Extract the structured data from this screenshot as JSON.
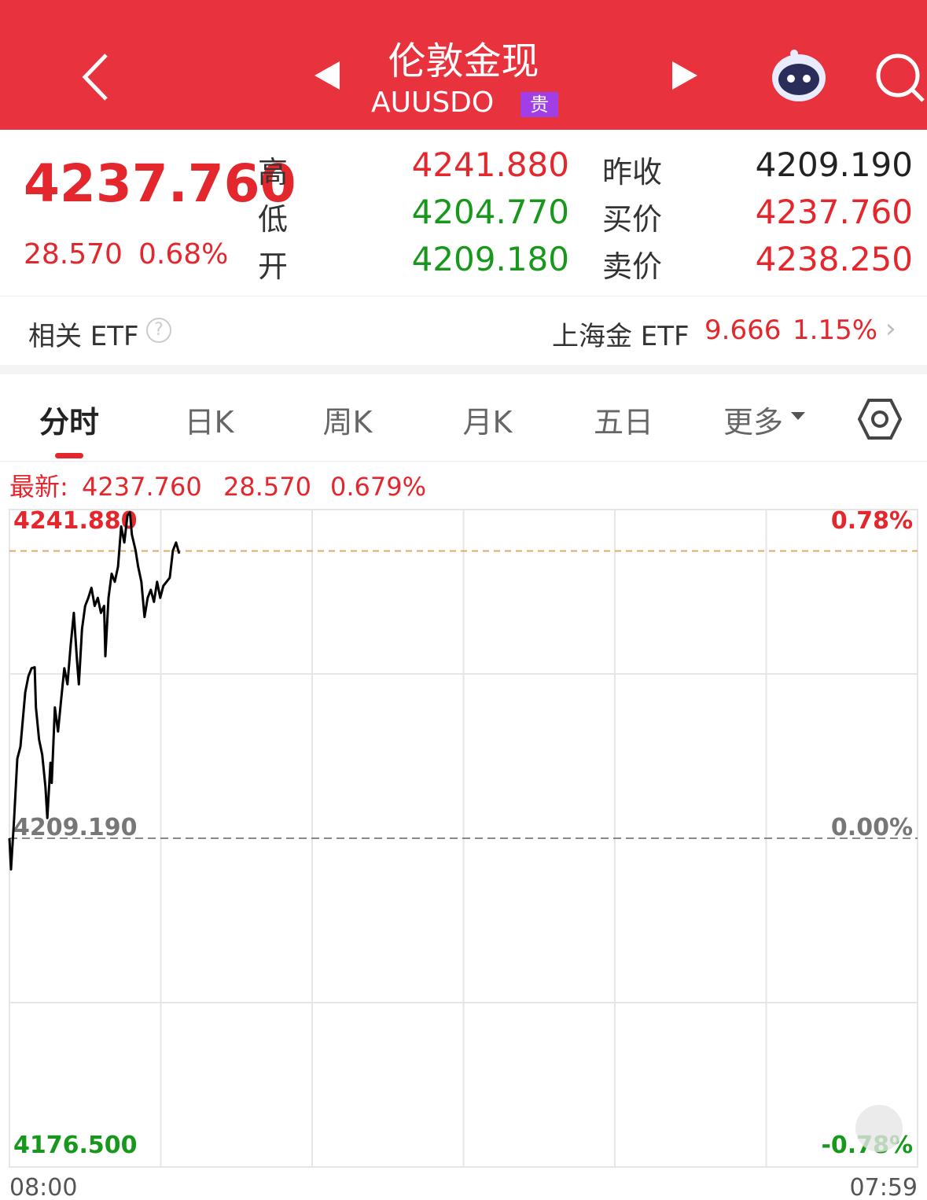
{
  "header": {
    "title": "伦敦金现",
    "code": "AUUSDO",
    "badge": "贵"
  },
  "quote": {
    "price": "4237.760",
    "change": "28.570",
    "percent": "0.68%",
    "high_label": "高",
    "high": "4241.880",
    "low_label": "低",
    "low": "4204.770",
    "open_label": "开",
    "open": "4209.180",
    "prev_close_label": "昨收",
    "prev_close": "4209.190",
    "bid_label": "买价",
    "bid": "4237.760",
    "ask_label": "卖价",
    "ask": "4238.250"
  },
  "etf": {
    "label": "相关 ETF",
    "name": "上海金 ETF",
    "price": "9.666",
    "percent": "1.15%"
  },
  "tabs": [
    "分时",
    "日K",
    "周K",
    "月K",
    "五日",
    "更多"
  ],
  "chart_data": {
    "type": "line",
    "latest_label": "最新:",
    "latest": {
      "value": 4237.76,
      "label": "4237.760"
    },
    "change": "28.570",
    "percent": "0.679%",
    "xlim": [
      0,
      1439
    ],
    "xticks": [
      {
        "value": 0,
        "label": "08:00"
      },
      {
        "value": 1439,
        "label": "07:59"
      }
    ],
    "ylim": [
      4176.5,
      4241.88
    ],
    "yticks": [
      {
        "value": 4176.5,
        "label": "4176.500"
      },
      {
        "value": 4209.19,
        "label": "4209.190"
      },
      {
        "value": 4241.88,
        "label": "4241.880"
      }
    ],
    "y2lim": [
      -0.78,
      0.78
    ],
    "y2ticks": [
      {
        "value": -0.78,
        "label": "-0.78%"
      },
      {
        "value": 0,
        "label": "0.00%"
      },
      {
        "value": 0.78,
        "label": "0.78%"
      }
    ],
    "series": [
      {
        "color": "#000000",
        "x": [
          0,
          2.5,
          7.5,
          12.5,
          17.5,
          25,
          30,
          35,
          40,
          42,
          47,
          52,
          57,
          60,
          65,
          67,
          72,
          77,
          82,
          87,
          92,
          97,
          102,
          107,
          110,
          115,
          120,
          125,
          130,
          135,
          140,
          145,
          150,
          152,
          157,
          162,
          167,
          172,
          177,
          182,
          187,
          191,
          194,
          200,
          204,
          209,
          214,
          219,
          224,
          229,
          234,
          239,
          244,
          249,
          254,
          259,
          264,
          269
        ],
        "values": [
          4209.2,
          4206.1,
          4211.2,
          4217.1,
          4218.3,
          4223.7,
          4225.3,
          4226.1,
          4226.2,
          4222.2,
          4219.0,
          4217.5,
          4214.3,
          4211.2,
          4216.7,
          4214.7,
          4222.2,
          4219.8,
          4223.0,
          4226.1,
          4224.5,
          4228.4,
          4231.6,
          4226.9,
          4224.5,
          4230.0,
          4232.3,
          4233.1,
          4234.1,
          4232.3,
          4233.1,
          4231.6,
          4232.3,
          4227.3,
          4233.1,
          4235.5,
          4234.7,
          4236.2,
          4240.2,
          4238.6,
          4241.3,
          4241.6,
          4239.4,
          4237.8,
          4236.2,
          4234.7,
          4231.2,
          4233.1,
          4233.9,
          4232.7,
          4234.7,
          4233.1,
          4234.3,
          4234.7,
          4235.1,
          4237.8,
          4238.6,
          4237.5
        ]
      }
    ]
  }
}
